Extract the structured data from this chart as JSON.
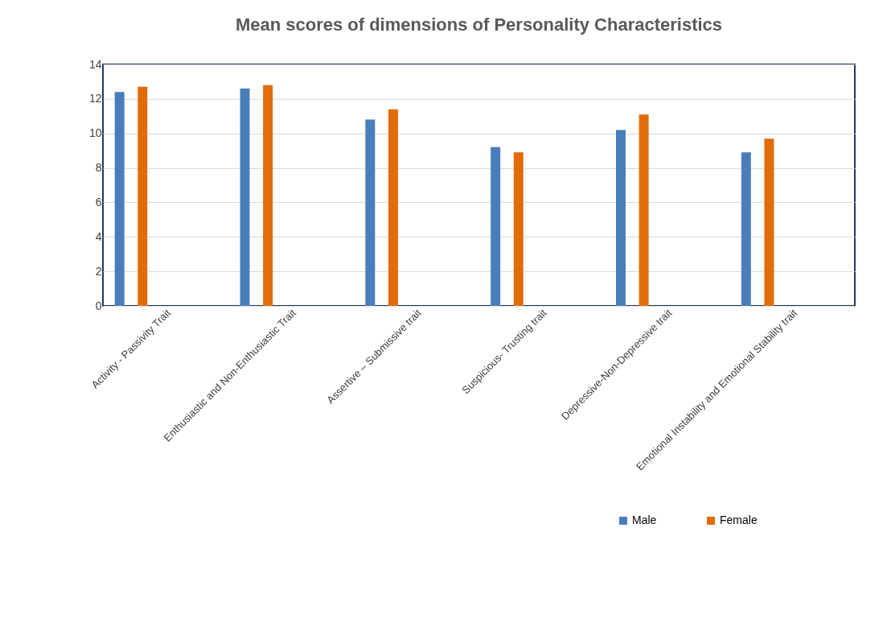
{
  "chart_data": {
    "type": "bar",
    "title": "Mean scores of dimensions of Personality Characteristics",
    "categories": [
      "Activity - Passivity Trait",
      "Enthusiastic and Non-Enthusiastic Trait",
      "Assertive – Submissive trait",
      "Suspicious- Trusting trait",
      "Depressive-Non-Depressive trait",
      "Emotional Instability and Emotional Stability trait"
    ],
    "series": [
      {
        "name": "Male",
        "color": "#4a7ebb",
        "values": [
          12.4,
          12.6,
          10.8,
          9.2,
          10.2,
          8.9
        ]
      },
      {
        "name": "Female",
        "color": "#e36c0a",
        "values": [
          12.7,
          12.8,
          11.4,
          8.9,
          11.1,
          9.7
        ]
      }
    ],
    "ylim": [
      0,
      14
    ],
    "yticks": [
      0,
      2,
      4,
      6,
      8,
      10,
      12,
      14
    ],
    "grid": "y",
    "legend": "bottom right"
  }
}
